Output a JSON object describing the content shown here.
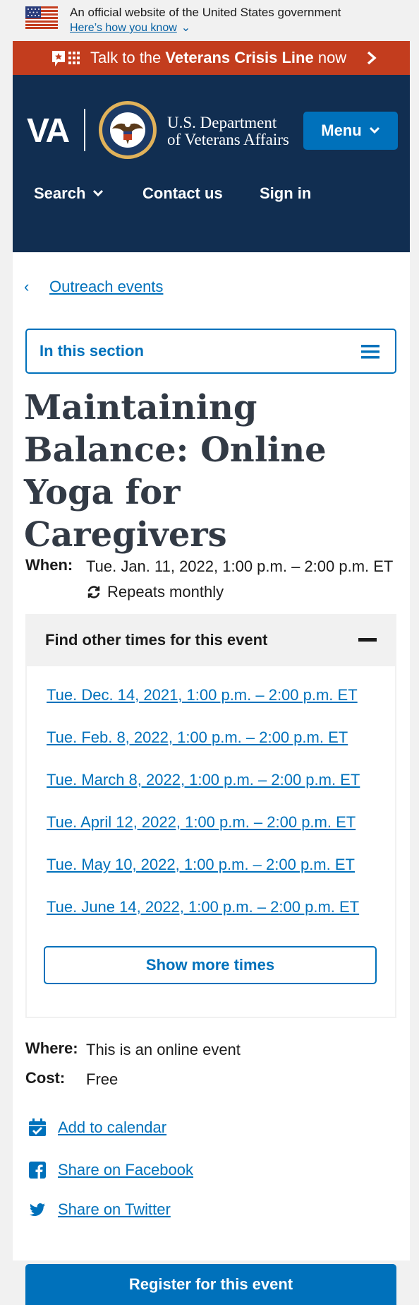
{
  "gov_banner": {
    "text": "An official website of the United States government",
    "link": "Here’s how you know"
  },
  "crisis": {
    "prefix": "Talk to the ",
    "strong": "Veterans Crisis Line",
    "suffix": " now"
  },
  "header": {
    "logo": "VA",
    "dept_line1": "U.S. Department",
    "dept_line2": "of Veterans Affairs",
    "menu_label": "Menu",
    "nav": [
      "Search",
      "Contact us",
      "Sign in"
    ]
  },
  "breadcrumb": {
    "back_label": "Outreach events"
  },
  "section_nav": {
    "label": "In this section"
  },
  "event": {
    "title": "Maintaining Balance: Online Yoga for Caregivers",
    "when_label": "When:",
    "when_value": "Tue. Jan. 11, 2022, 1:00 p.m. – 2:00 p.m. ET",
    "repeats": "Repeats monthly",
    "other_times_heading": "Find other times for this event",
    "other_times": [
      "Tue. Dec. 14, 2021, 1:00 p.m. – 2:00 p.m. ET",
      "Tue. Feb. 8, 2022, 1:00 p.m. – 2:00 p.m. ET",
      "Tue. March 8, 2022, 1:00 p.m. – 2:00 p.m. ET",
      "Tue. April 12, 2022, 1:00 p.m. – 2:00 p.m. ET",
      "Tue. May 10, 2022, 1:00 p.m. – 2:00 p.m. ET",
      "Tue. June 14, 2022, 1:00 p.m. – 2:00 p.m. ET"
    ],
    "show_more": "Show more times",
    "where_label": "Where:",
    "where_value": "This is an online event",
    "cost_label": "Cost:",
    "cost_value": "Free",
    "actions": {
      "calendar": "Add to calendar",
      "facebook": "Share on Facebook",
      "twitter": "Share on Twitter"
    },
    "register": "Register for this event"
  },
  "colors": {
    "primary": "#0071bb",
    "header_bg": "#112e51",
    "crisis_bg": "#c33d1e",
    "title": "#323a45"
  }
}
